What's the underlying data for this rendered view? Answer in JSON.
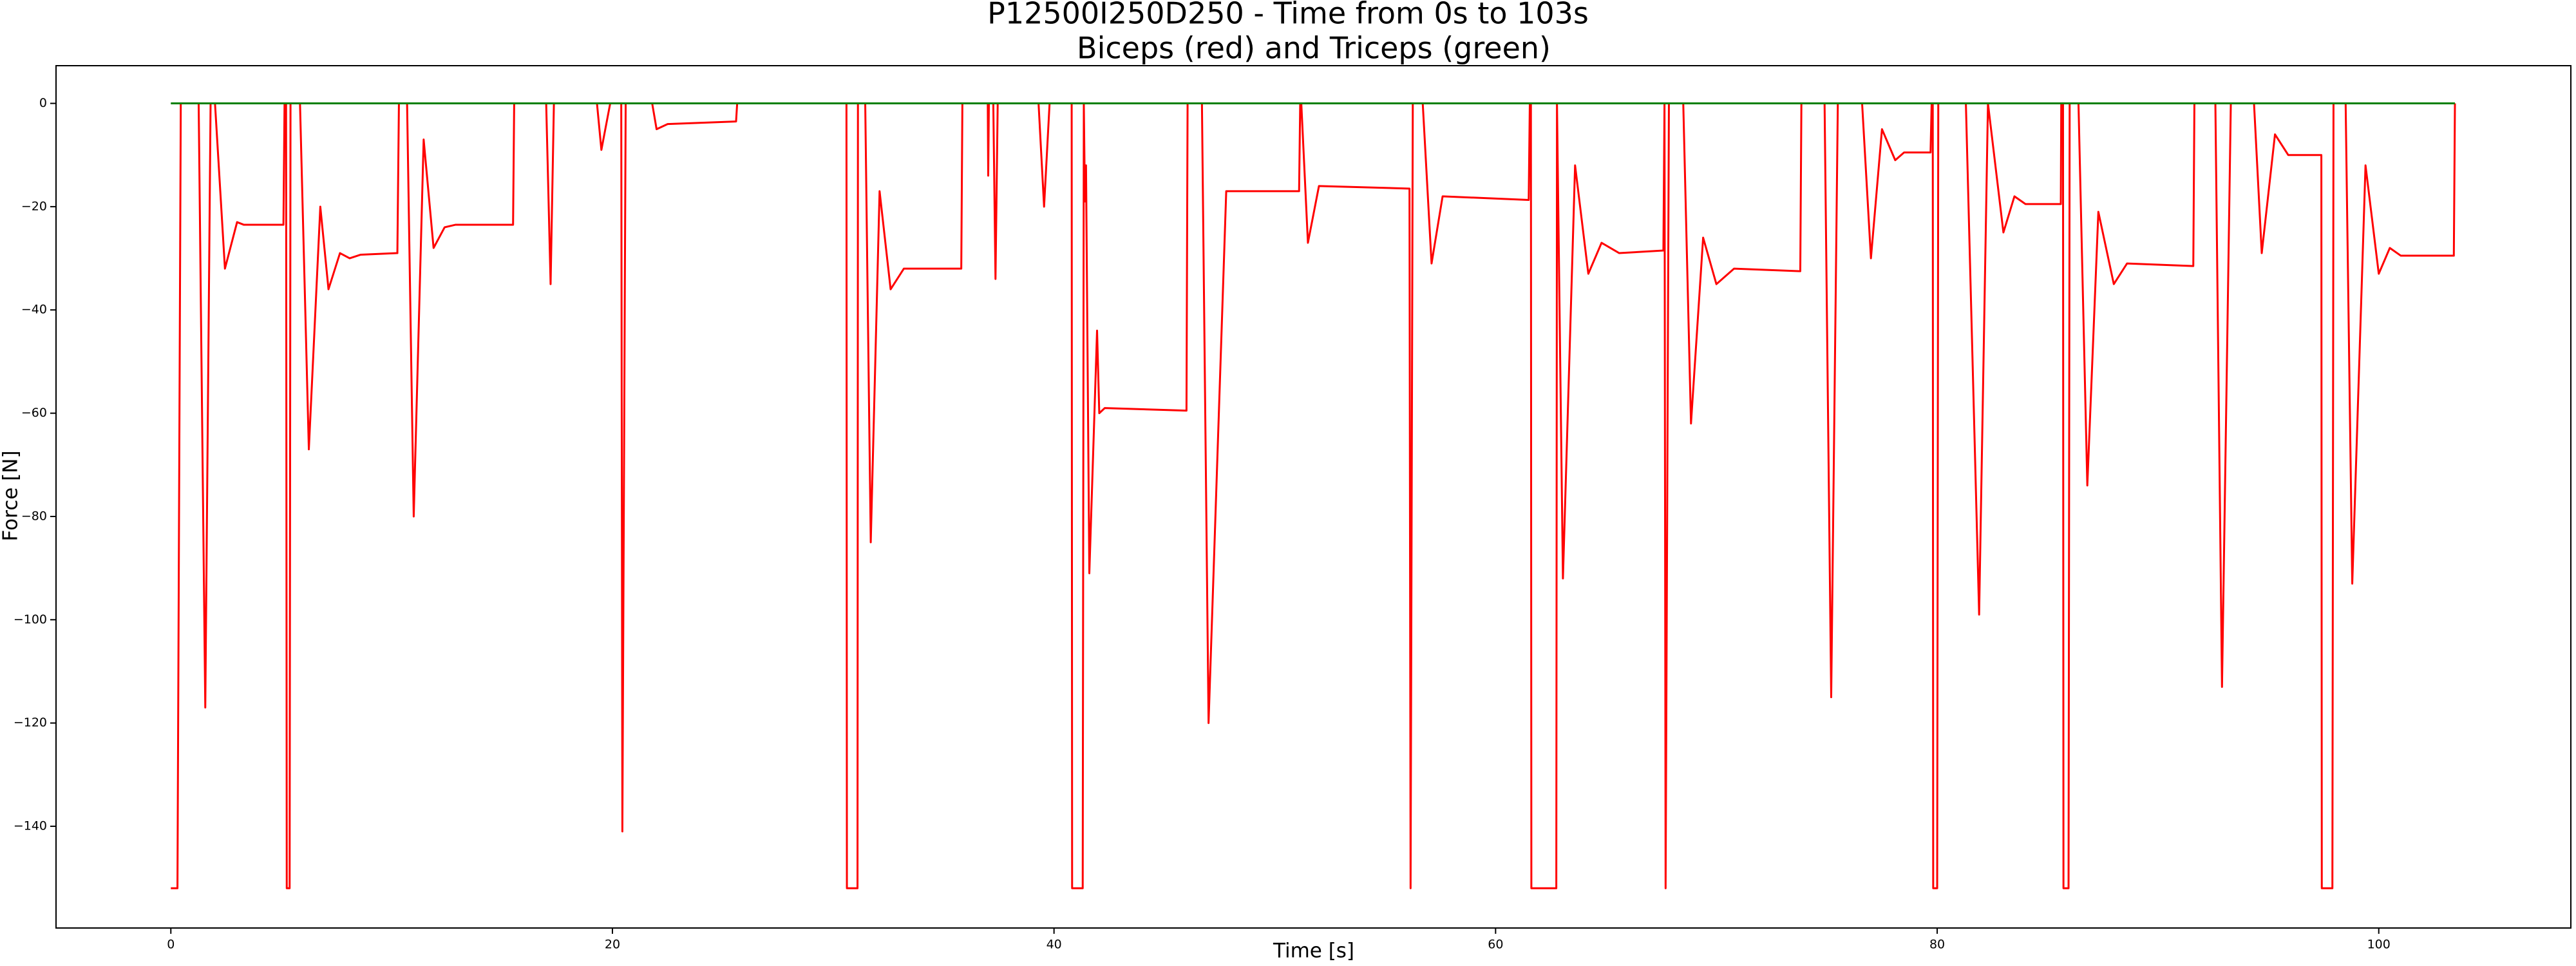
{
  "chart_data": {
    "type": "line",
    "title": "P12500I250D250 - Time from 0s to 103s",
    "subtitle": "Biceps (red) and Triceps (green)",
    "x_label": "Time [s]",
    "y_label": "Force [N]",
    "xlim": [
      -5.2,
      108.7
    ],
    "ylim": [
      -159.7,
      7.3
    ],
    "xticks": [
      0,
      20,
      40,
      60,
      80,
      100
    ],
    "yticks": [
      0,
      {
        "value": -20,
        "label": "−20"
      },
      {
        "value": -40,
        "label": "−40"
      },
      {
        "value": -60,
        "label": "−60"
      },
      {
        "value": -80,
        "label": "−80"
      },
      {
        "value": -100,
        "label": "−100"
      },
      {
        "value": -120,
        "label": "−120"
      },
      {
        "value": -140,
        "label": "−140"
      }
    ],
    "grid": false,
    "series": [
      {
        "color": "#ff0000",
        "x": [
          0,
          0.3,
          0.45,
          1.26,
          1.56,
          1.8,
          2.0,
          2.45,
          3.0,
          3.3,
          5.1,
          5.15,
          5.22,
          5.25,
          5.38,
          5.42,
          5.85,
          6.25,
          6.77,
          7.14,
          7.66,
          8.1,
          8.6,
          10.26,
          10.33,
          10.7,
          11.0,
          11.45,
          11.9,
          12.4,
          12.9,
          15.5,
          15.55,
          17.0,
          17.2,
          17.35,
          19.3,
          19.5,
          19.9,
          20.4,
          20.45,
          20.6,
          21.8,
          22.0,
          22.5,
          25.6,
          25.65,
          30.6,
          30.62,
          31.1,
          31.12,
          31.45,
          31.7,
          32.1,
          32.6,
          33.2,
          35.8,
          35.85,
          37.0,
          37.02,
          37.05,
          37.25,
          37.35,
          37.45,
          39.3,
          39.55,
          39.8,
          40.8,
          40.82,
          41.3,
          41.35,
          41.4,
          41.45,
          41.6,
          41.95,
          42.05,
          42.3,
          46.0,
          46.05,
          46.7,
          47.0,
          47.8,
          51.1,
          51.15,
          51.2,
          51.5,
          52.0,
          56.1,
          56.15,
          56.25,
          56.7,
          57.1,
          57.6,
          61.5,
          61.55,
          61.6,
          61.62,
          62.75,
          62.78,
          63.05,
          63.6,
          64.2,
          64.8,
          65.6,
          67.6,
          67.65,
          67.7,
          67.85,
          68.5,
          68.85,
          69.4,
          70.0,
          70.8,
          73.8,
          73.85,
          74.9,
          75.2,
          75.5,
          76.6,
          77.0,
          77.5,
          78.1,
          78.5,
          79.7,
          79.75,
          79.8,
          79.82,
          80.0,
          80.05,
          81.3,
          81.9,
          82.3,
          83.0,
          83.5,
          84.0,
          85.6,
          85.62,
          85.7,
          85.72,
          85.95,
          86.0,
          86.4,
          86.8,
          87.3,
          88.0,
          88.6,
          91.6,
          91.65,
          92.6,
          92.9,
          93.3,
          94.35,
          94.7,
          95.3,
          95.9,
          97.4,
          97.42,
          97.9,
          97.95,
          98.5,
          98.8,
          99.4,
          100.0,
          100.5,
          101.0,
          103.4,
          103.45
        ],
        "values": [
          -152,
          -152,
          0,
          0,
          -117,
          0,
          0,
          -32,
          -23,
          -23.5,
          -23.5,
          0,
          0,
          -152,
          -152,
          0,
          0,
          -67,
          -20,
          -36,
          -29,
          -30,
          -29.3,
          -29,
          0,
          0,
          -80,
          -7,
          -28,
          -24,
          -23.5,
          -23.5,
          0,
          0,
          -35,
          0,
          0,
          -9,
          0,
          0,
          -141,
          0,
          0,
          -5,
          -4,
          -3.5,
          0,
          0,
          -152,
          -152,
          0,
          0,
          -85,
          -17,
          -36,
          -32,
          -32,
          0,
          0,
          -14,
          0,
          0,
          -34,
          0,
          0,
          -20,
          0,
          0,
          -152,
          -152,
          0,
          -19,
          -12,
          -91,
          -44,
          -60,
          -59,
          -59.5,
          0,
          0,
          -120,
          -17,
          -17,
          0,
          0,
          -27,
          -16,
          -16.5,
          -152,
          0,
          0,
          -31,
          -18,
          -18.7,
          0,
          0,
          -152,
          -152,
          0,
          -92,
          -12,
          -33,
          -27,
          -29,
          -28.5,
          0,
          -152,
          0,
          0,
          -62,
          -26,
          -35,
          -32,
          -32.5,
          0,
          0,
          -115,
          0,
          0,
          -30,
          -5,
          -11,
          -9.5,
          -9.5,
          0,
          0,
          -152,
          -152,
          0,
          0,
          -99,
          0,
          -25,
          -18,
          -19.5,
          -19.5,
          0,
          0,
          -152,
          -152,
          0,
          0,
          -74,
          -21,
          -35,
          -31,
          -31.5,
          0,
          0,
          -113,
          0,
          0,
          -29,
          -6,
          -10,
          -10,
          -152,
          -152,
          0,
          0,
          -93,
          -12,
          -33,
          -28,
          -29.5,
          -29.5,
          0
        ]
      },
      {
        "color": "#008000",
        "x": [
          0,
          103.45
        ],
        "values": [
          0,
          0
        ]
      }
    ]
  }
}
